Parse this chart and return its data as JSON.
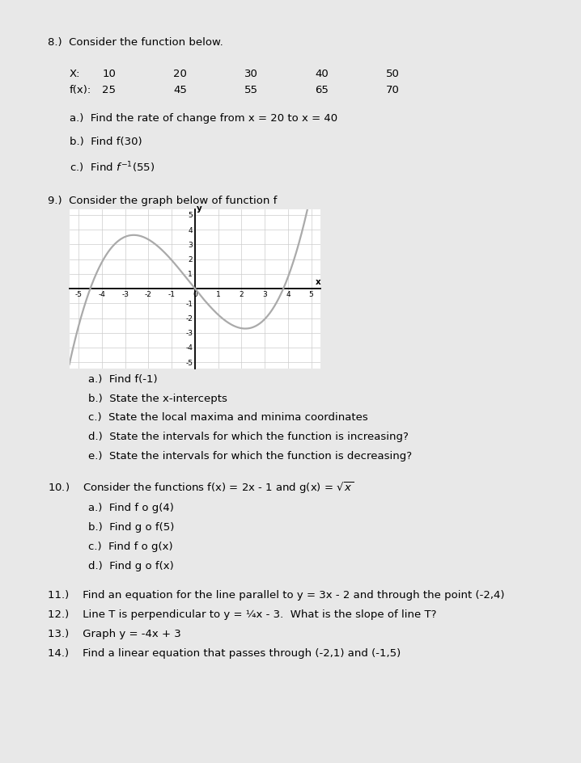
{
  "background_color": "#e8e8e8",
  "page_background": "#ffffff",
  "graph_color": "#aaaaaa",
  "graph_linewidth": 1.6,
  "graph_xlim": [
    -5,
    5
  ],
  "graph_ylim": [
    -5,
    5
  ]
}
